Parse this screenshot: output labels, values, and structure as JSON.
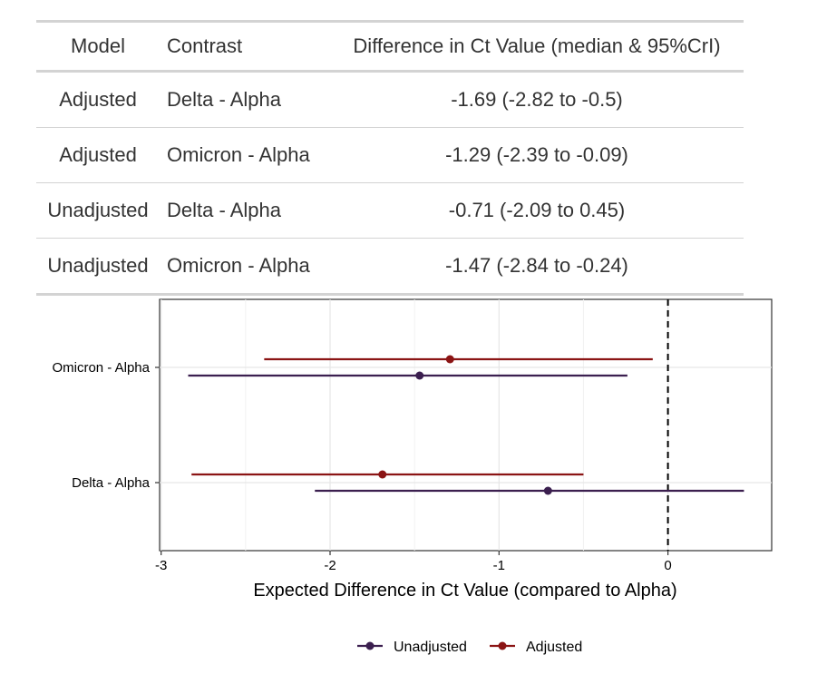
{
  "table": {
    "headers": {
      "model": "Model",
      "contrast": "Contrast",
      "difference": "Difference in Ct Value (median & 95%CrI)"
    },
    "rows": [
      {
        "model": "Adjusted",
        "contrast": "Delta - Alpha",
        "difference": "-1.69 (-2.82 to -0.5)"
      },
      {
        "model": "Adjusted",
        "contrast": "Omicron - Alpha",
        "difference": "-1.29 (-2.39 to -0.09)"
      },
      {
        "model": "Unadjusted",
        "contrast": "Delta - Alpha",
        "difference": "-0.71 (-2.09 to 0.45)"
      },
      {
        "model": "Unadjusted",
        "contrast": "Omicron - Alpha",
        "difference": "-1.47 (-2.84 to -0.24)"
      }
    ]
  },
  "chart_data": {
    "type": "scatter",
    "orientation": "horizontal",
    "categories": [
      "Delta - Alpha",
      "Omicron - Alpha"
    ],
    "xlabel": "Expected Difference in Ct Value (compared to Alpha)",
    "ylabel": "",
    "xlim": [
      -3,
      0.45
    ],
    "xticks": [
      -3,
      -2,
      -1,
      0
    ],
    "reference_line": 0,
    "grid": true,
    "legend_position": "bottom",
    "series": [
      {
        "name": "Unadjusted",
        "color": "#3b1f4f",
        "points": [
          {
            "category": "Delta - Alpha",
            "median": -0.71,
            "lower": -2.09,
            "upper": 0.45
          },
          {
            "category": "Omicron - Alpha",
            "median": -1.47,
            "lower": -2.84,
            "upper": -0.24
          }
        ]
      },
      {
        "name": "Adjusted",
        "color": "#8b1414",
        "points": [
          {
            "category": "Delta - Alpha",
            "median": -1.69,
            "lower": -2.82,
            "upper": -0.5
          },
          {
            "category": "Omicron - Alpha",
            "median": -1.29,
            "lower": -2.39,
            "upper": -0.09
          }
        ]
      }
    ]
  }
}
